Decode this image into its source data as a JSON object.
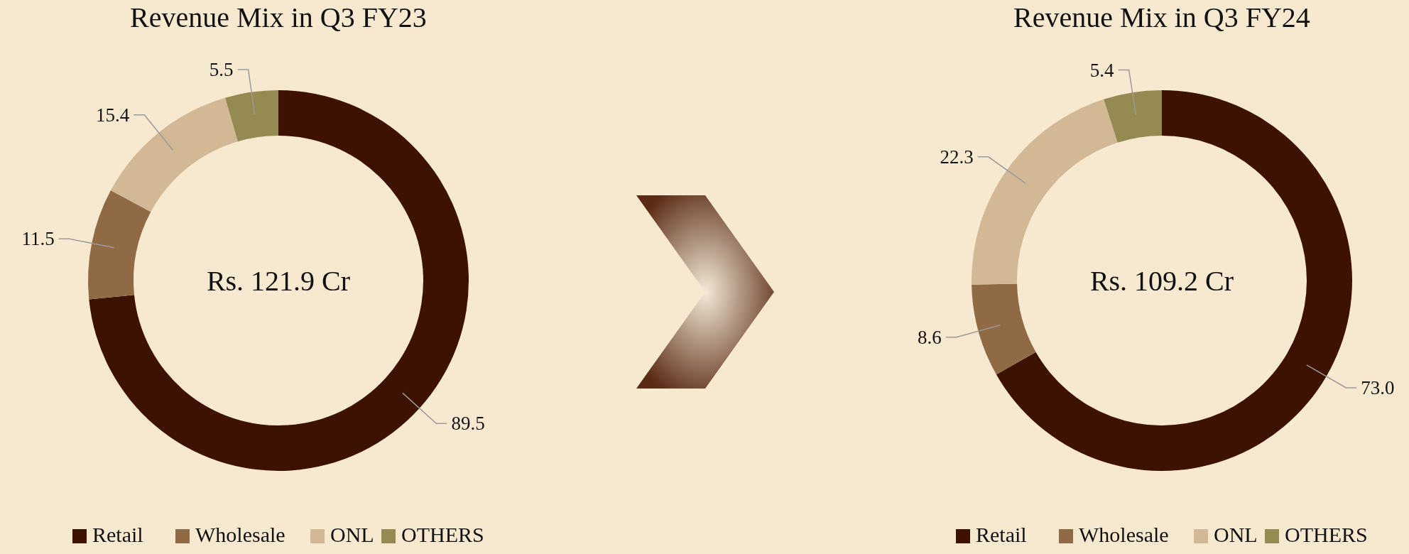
{
  "chart_data": [
    {
      "type": "donut",
      "title": "Revenue Mix in Q3 FY23",
      "categories": [
        "Retail",
        "Wholesale",
        "ONL",
        "OTHERS"
      ],
      "values": [
        89.5,
        11.5,
        15.4,
        5.5
      ],
      "colors": [
        "#3d1203",
        "#8f6a44",
        "#d3b896",
        "#948a52"
      ],
      "data_labels": true,
      "legend": "bottom",
      "annotations": [
        "Rs. 121.9 Cr"
      ]
    },
    {
      "type": "donut",
      "title": "Revenue Mix in Q3 FY24",
      "categories": [
        "Retail",
        "Wholesale",
        "ONL",
        "OTHERS"
      ],
      "values": [
        73.0,
        8.6,
        22.3,
        5.4
      ],
      "colors": [
        "#3d1203",
        "#8f6a44",
        "#d3b896",
        "#948a52"
      ],
      "value_labels": [
        "73.0",
        "8.6",
        "22.3",
        "5.4"
      ],
      "legend": "bottom",
      "annotations": [
        "Rs. 109.2 Cr"
      ]
    }
  ]
}
